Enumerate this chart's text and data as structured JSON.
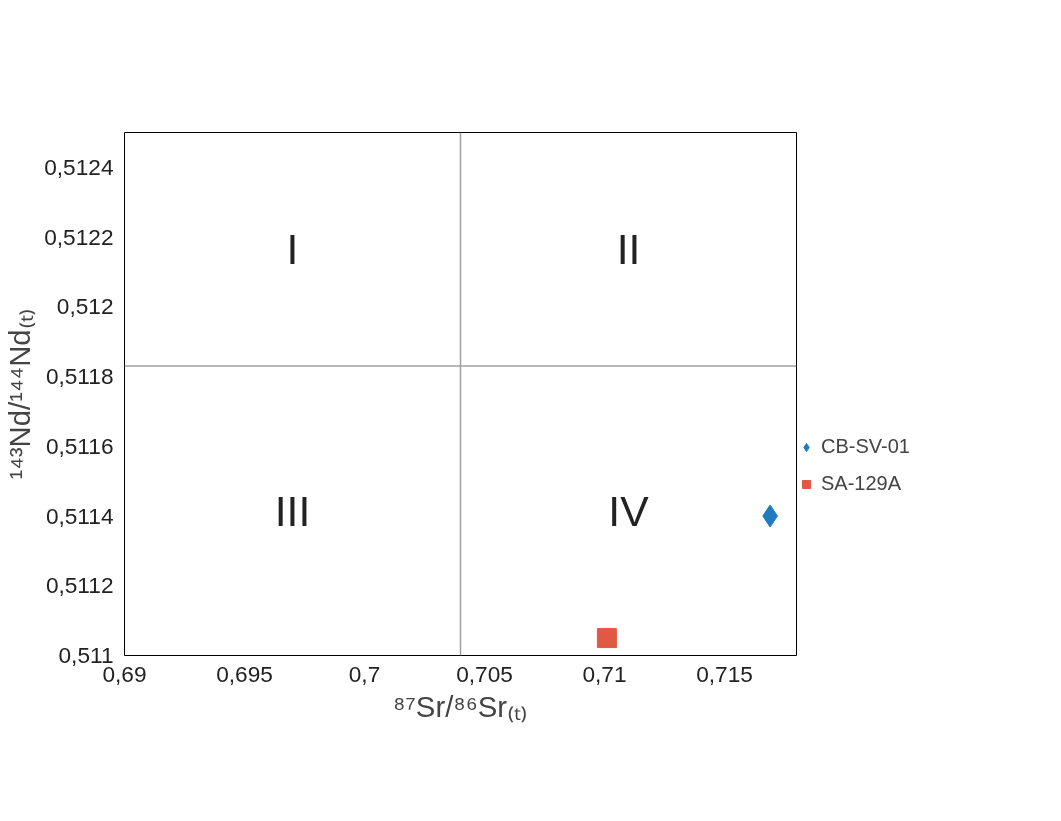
{
  "chart_data": {
    "type": "scatter",
    "xlabel": "⁸⁷Sr/⁸⁶Sr₍ₜ₎",
    "ylabel": "¹⁴³Nd/¹⁴⁴Nd₍ₜ₎",
    "xlim": [
      0.69,
      0.718
    ],
    "ylim": [
      0.511,
      0.5125
    ],
    "xticks": [
      {
        "value": 0.69,
        "label": "0,69"
      },
      {
        "value": 0.695,
        "label": "0,695"
      },
      {
        "value": 0.7,
        "label": "0,7"
      },
      {
        "value": 0.705,
        "label": "0,705"
      },
      {
        "value": 0.71,
        "label": "0,71"
      },
      {
        "value": 0.715,
        "label": "0,715"
      }
    ],
    "yticks": [
      {
        "value": 0.511,
        "label": "0,511"
      },
      {
        "value": 0.5112,
        "label": "0,5112"
      },
      {
        "value": 0.5114,
        "label": "0,5114"
      },
      {
        "value": 0.5116,
        "label": "0,5116"
      },
      {
        "value": 0.5118,
        "label": "0,5118"
      },
      {
        "value": 0.512,
        "label": "0,512"
      },
      {
        "value": 0.5122,
        "label": "0,5122"
      },
      {
        "value": 0.5124,
        "label": "0,5124"
      }
    ],
    "series": [
      {
        "name": "CB-SV-01",
        "color": "#1f7bbf",
        "marker": "diamond",
        "x": [
          0.7169
        ],
        "values": [
          0.5114
        ]
      },
      {
        "name": "SA-129A",
        "color": "#e05a43",
        "marker": "square",
        "x": [
          0.7101
        ],
        "values": [
          0.51105
        ]
      }
    ],
    "ref_lines": [
      {
        "axis": "x",
        "value": 0.704,
        "color": "#a0a0a0"
      },
      {
        "axis": "y",
        "value": 0.51183,
        "color": "#a0a0a0"
      }
    ],
    "annotations": [
      "I",
      "II",
      "III",
      "IV"
    ],
    "grid": false,
    "legend": "right"
  }
}
